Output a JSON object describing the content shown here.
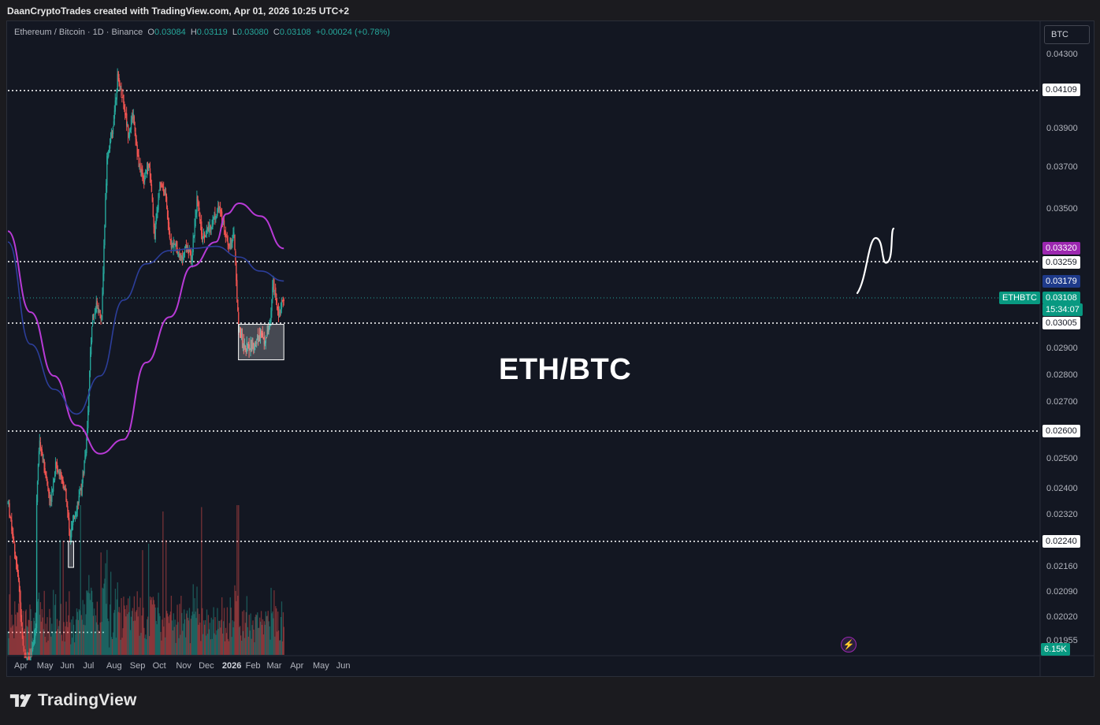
{
  "header": {
    "attribution": "DaanCryptoTrades created with TradingView.com, Apr 01, 2026 10:25 UTC+2"
  },
  "legend": {
    "symbol": "Ethereum / Bitcoin · 1D · Binance",
    "open_label": "O",
    "open": "0.03084",
    "high_label": "H",
    "high": "0.03119",
    "low_label": "L",
    "low": "0.03080",
    "close_label": "C",
    "close": "0.03108",
    "change": "+0.00024 (+0.78%)"
  },
  "unit_button": "BTC",
  "annotation_text": "ETH/BTC",
  "footer": {
    "brand": "TradingView"
  },
  "price_tags": {
    "level_0410": "0.04109",
    "ma_purple": "0.03320",
    "level_0326": "0.03259",
    "ma_blue": "0.03179",
    "symbol_tag": "ETHBTC",
    "last_price": "0.03108",
    "countdown": "15:34:07",
    "level_0300": "0.03005",
    "level_0260": "0.02600",
    "level_0224": "0.02240",
    "volume": "6.15K"
  },
  "colors": {
    "up": "#26a69a",
    "down": "#ef5350",
    "ma_purple": "#b83ad6",
    "ma_blue": "#2c3e9a",
    "background": "#131722"
  },
  "chart_data": {
    "type": "candlestick",
    "title": "Ethereum / Bitcoin · 1D · Binance",
    "x_ticks": [
      "Apr",
      "May",
      "Jun",
      "Jul",
      "Aug",
      "Sep",
      "Oct",
      "Nov",
      "Dec",
      "2026",
      "Feb",
      "Mar",
      "Apr",
      "May",
      "Jun"
    ],
    "y_ticks": [
      "0.04300",
      "0.03900",
      "0.03700",
      "0.03500",
      "0.02900",
      "0.02800",
      "0.02700",
      "0.02500",
      "0.02400",
      "0.02320",
      "0.02160",
      "0.02090",
      "0.02020",
      "0.01955"
    ],
    "price_path": [
      [
        "2025-04-01",
        0.0236
      ],
      [
        "2025-04-08",
        0.0225
      ],
      [
        "2025-04-15",
        0.0212
      ],
      [
        "2025-04-22",
        0.0192
      ],
      [
        "2025-04-30",
        0.019
      ],
      [
        "2025-05-08",
        0.02
      ],
      [
        "2025-05-09",
        0.0238
      ],
      [
        "2025-05-13",
        0.0257
      ],
      [
        "2025-05-20",
        0.0246
      ],
      [
        "2025-05-27",
        0.0236
      ],
      [
        "2025-06-03",
        0.0248
      ],
      [
        "2025-06-10",
        0.0245
      ],
      [
        "2025-06-17",
        0.0238
      ],
      [
        "2025-06-22",
        0.0225
      ],
      [
        "2025-06-30",
        0.0234
      ],
      [
        "2025-07-07",
        0.024
      ],
      [
        "2025-07-14",
        0.0256
      ],
      [
        "2025-07-21",
        0.03
      ],
      [
        "2025-07-28",
        0.0309
      ],
      [
        "2025-08-03",
        0.0302
      ],
      [
        "2025-08-10",
        0.0375
      ],
      [
        "2025-08-17",
        0.0388
      ],
      [
        "2025-08-24",
        0.0418
      ],
      [
        "2025-08-31",
        0.0407
      ],
      [
        "2025-09-07",
        0.0388
      ],
      [
        "2025-09-14",
        0.0398
      ],
      [
        "2025-09-21",
        0.0371
      ],
      [
        "2025-09-28",
        0.0365
      ],
      [
        "2025-10-05",
        0.0372
      ],
      [
        "2025-10-12",
        0.0338
      ],
      [
        "2025-10-19",
        0.0364
      ],
      [
        "2025-10-26",
        0.0358
      ],
      [
        "2025-11-02",
        0.0334
      ],
      [
        "2025-11-09",
        0.0333
      ],
      [
        "2025-11-16",
        0.0327
      ],
      [
        "2025-11-23",
        0.0333
      ],
      [
        "2025-11-30",
        0.0328
      ],
      [
        "2025-12-07",
        0.0355
      ],
      [
        "2025-12-14",
        0.0338
      ],
      [
        "2025-12-21",
        0.034
      ],
      [
        "2025-12-28",
        0.0345
      ],
      [
        "2026-01-04",
        0.0351
      ],
      [
        "2026-01-11",
        0.0344
      ],
      [
        "2026-01-18",
        0.0334
      ],
      [
        "2026-01-25",
        0.0338
      ],
      [
        "2026-01-31",
        0.0298
      ],
      [
        "2026-02-07",
        0.0292
      ],
      [
        "2026-02-14",
        0.0291
      ],
      [
        "2026-02-21",
        0.0292
      ],
      [
        "2026-02-28",
        0.0296
      ],
      [
        "2026-03-07",
        0.0293
      ],
      [
        "2026-03-14",
        0.0301
      ],
      [
        "2026-03-18",
        0.0318
      ],
      [
        "2026-03-25",
        0.0304
      ],
      [
        "2026-04-01",
        0.03108
      ]
    ],
    "moving_average_purple": [
      [
        "2025-04-01",
        0.034
      ],
      [
        "2025-05-01",
        0.0305
      ],
      [
        "2025-06-01",
        0.028
      ],
      [
        "2025-07-01",
        0.0262
      ],
      [
        "2025-08-01",
        0.0252
      ],
      [
        "2025-09-01",
        0.0257
      ],
      [
        "2025-10-01",
        0.0285
      ],
      [
        "2025-11-01",
        0.0303
      ],
      [
        "2025-12-01",
        0.0324
      ],
      [
        "2026-01-01",
        0.0335
      ],
      [
        "2026-01-15",
        0.0348
      ],
      [
        "2026-02-01",
        0.0353
      ],
      [
        "2026-03-01",
        0.0347
      ],
      [
        "2026-04-01",
        0.0332
      ]
    ],
    "moving_average_blue": [
      [
        "2025-04-01",
        0.0335
      ],
      [
        "2025-05-01",
        0.0292
      ],
      [
        "2025-06-01",
        0.0275
      ],
      [
        "2025-07-01",
        0.0266
      ],
      [
        "2025-08-01",
        0.028
      ],
      [
        "2025-09-01",
        0.031
      ],
      [
        "2025-10-01",
        0.0325
      ],
      [
        "2025-11-01",
        0.0331
      ],
      [
        "2025-12-01",
        0.0332
      ],
      [
        "2026-01-01",
        0.0333
      ],
      [
        "2026-02-01",
        0.0328
      ],
      [
        "2026-03-01",
        0.0322
      ],
      [
        "2026-04-01",
        0.03179
      ]
    ],
    "horizontal_levels": [
      0.04109,
      0.03259,
      0.03005,
      0.026,
      0.0224
    ],
    "last_price": 0.03108,
    "range_boxes": [
      {
        "from": "2025-06-20",
        "to": "2025-06-27",
        "low": 0.0216,
        "high": 0.0224
      },
      {
        "from": "2026-01-31",
        "to": "2026-04-01",
        "low": 0.0286,
        "high": 0.03
      }
    ],
    "volume_last": "6.15K",
    "grid": false,
    "legend_position": "top-left"
  }
}
